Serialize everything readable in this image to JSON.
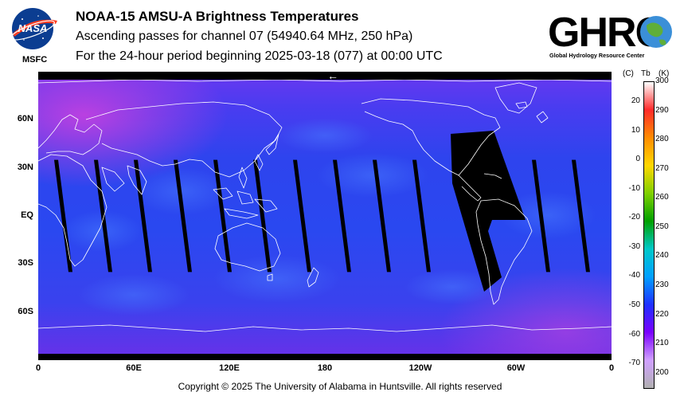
{
  "header": {
    "title": "NOAA-15 AMSU-A Brightness Temperatures",
    "subtitle": "Ascending passes for channel 07 (54940.64 MHz, 250 hPa)",
    "period": "For the 24-hour period beginning 2025-03-18 (077) at 00:00 UTC"
  },
  "logos": {
    "nasa_text": "NASA",
    "msfc_text": "MSFC",
    "ghrc_text": "GHRC",
    "ghrc_caption": "Global Hydrology Resource Center"
  },
  "footer": {
    "copyright": "Copyright © 2025 The University of Alabama in Huntsville.  All rights reserved"
  },
  "colors": {
    "map_background": "#3040e8",
    "polar_purple": "#9a30e0",
    "swath_gap": "#000000",
    "coastline": "#ffffff"
  },
  "chart_data": {
    "type": "heatmap",
    "map_projection": "equirectangular",
    "x_ticks": [
      "0",
      "60E",
      "120E",
      "180",
      "120W",
      "60W",
      "0"
    ],
    "y_ticks": [
      "60N",
      "30N",
      "EQ",
      "30S",
      "60S"
    ],
    "colorbar": {
      "unit_c": "(C)",
      "unit_tb": "Tb",
      "unit_k": "(K)",
      "celsius_ticks": [
        "20",
        "10",
        "0",
        "-10",
        "-20",
        "-30",
        "-40",
        "-50",
        "-60",
        "-70"
      ],
      "kelvin_ticks": [
        "300",
        "290",
        "280",
        "270",
        "260",
        "250",
        "240",
        "230",
        "220",
        "210",
        "200"
      ],
      "range_k": [
        195,
        300
      ],
      "colors": [
        "#ffffff",
        "#ff2a2a",
        "#ff8c00",
        "#ffd700",
        "#7fd000",
        "#00a000",
        "#00c8c8",
        "#00a0ff",
        "#1e30ff",
        "#7a00ff",
        "#d0a0ff",
        "#b0b0b0"
      ]
    },
    "swath_gap_longitudes_deg_e": [
      10,
      35,
      60,
      85,
      110,
      135,
      160,
      185,
      210,
      235,
      260,
      285,
      310,
      335
    ],
    "orbit_direction_marker": "←"
  }
}
